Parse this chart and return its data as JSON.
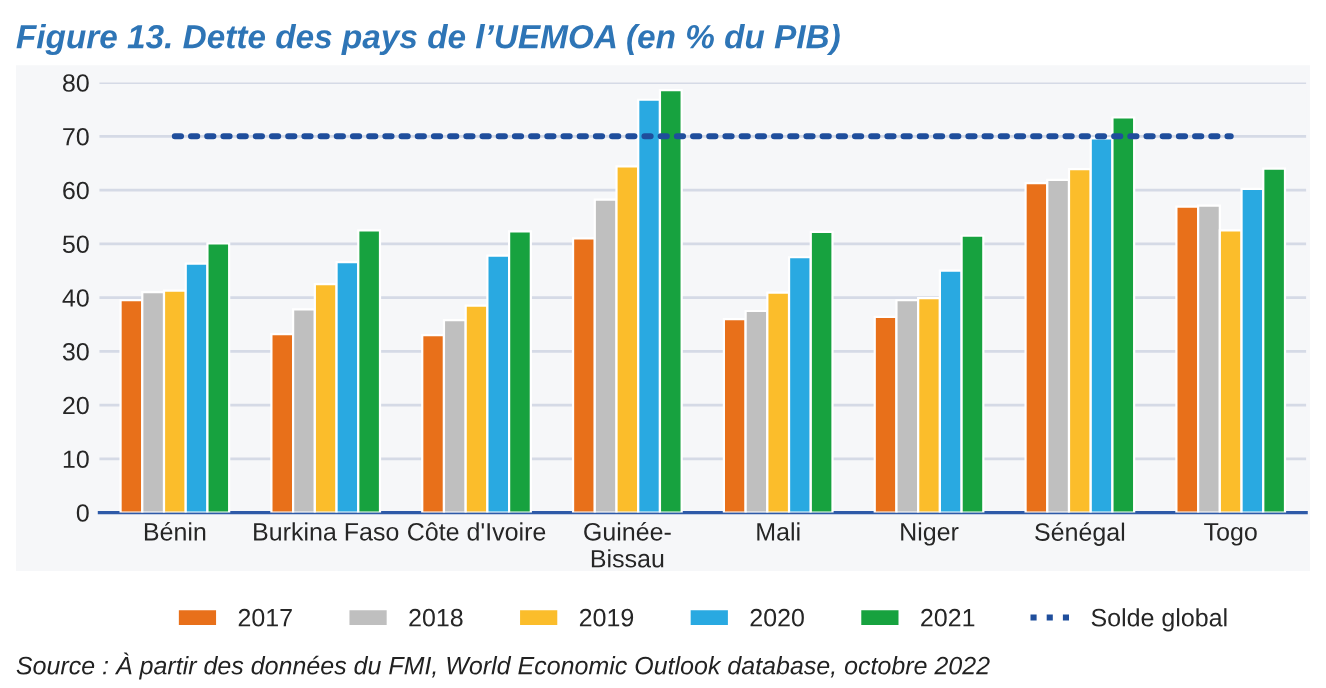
{
  "chart_data": {
    "type": "bar",
    "title": "Figure 13. Dette des pays de l’UEMOA (en % du PIB)",
    "categories": [
      "Bénin",
      "Burkina Faso",
      "Côte d'Ivoire",
      "Guinée-\nBissau",
      "Mali",
      "Niger",
      "Sénégal",
      "Togo"
    ],
    "series": [
      {
        "name": "2017",
        "color": "#e8701a",
        "values": [
          39.5,
          33.2,
          33.0,
          51.0,
          36.0,
          36.4,
          61.3,
          56.9
        ]
      },
      {
        "name": "2018",
        "color": "#bfbfbf",
        "values": [
          41.0,
          37.8,
          35.8,
          58.2,
          37.5,
          39.5,
          61.9,
          57.1
        ]
      },
      {
        "name": "2019",
        "color": "#fbbd2b",
        "values": [
          41.3,
          42.5,
          38.5,
          64.4,
          40.9,
          39.9,
          63.9,
          52.5
        ]
      },
      {
        "name": "2020",
        "color": "#29a9e1",
        "values": [
          46.3,
          46.6,
          47.8,
          76.8,
          47.5,
          45.0,
          69.6,
          60.2
        ]
      },
      {
        "name": "2021",
        "color": "#17a23f",
        "values": [
          50.1,
          52.5,
          52.3,
          78.6,
          52.2,
          51.5,
          73.5,
          64.0
        ]
      },
      {
        "name": "Solde global",
        "type": "line",
        "color": "#1f4e9c",
        "line_style": "dotted",
        "values": [
          70,
          70,
          70,
          70,
          70,
          70,
          70,
          70
        ]
      }
    ],
    "ylim": [
      0,
      80
    ],
    "yticks": [
      0,
      10,
      20,
      30,
      40,
      50,
      60,
      70,
      80
    ],
    "grid": "y",
    "legend": "bottom",
    "annotations": [
      "Source : À partir des données du FMI, World Economic Outlook database, octobre 2022"
    ]
  }
}
